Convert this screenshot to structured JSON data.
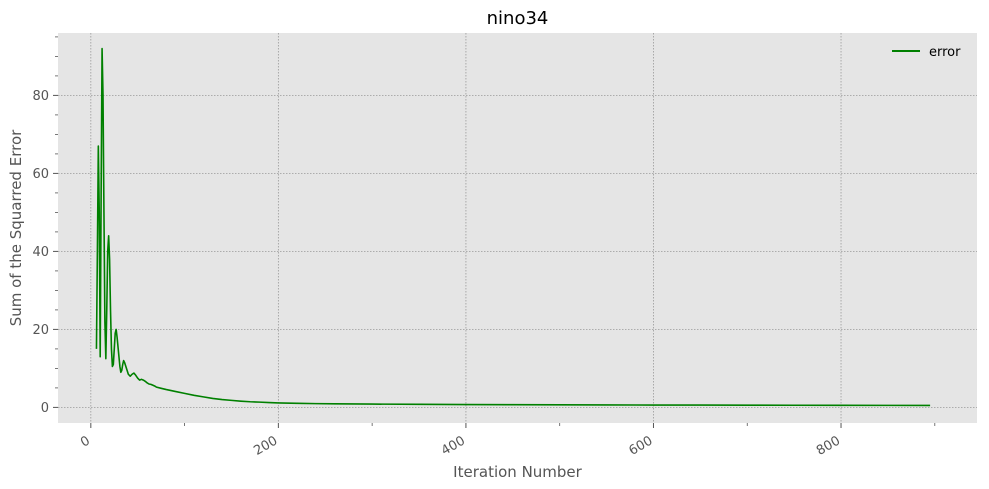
{
  "chart_data": {
    "type": "line",
    "title": "nino34",
    "xlabel": "Iteration Number",
    "ylabel": "Sum of the Squarred Error",
    "xlim": [
      -35,
      945
    ],
    "ylim": [
      -4,
      96
    ],
    "xticks": [
      0,
      200,
      400,
      600,
      800
    ],
    "xtick_labels": [
      "0",
      "200",
      "400",
      "600",
      "800"
    ],
    "yticks": [
      0,
      20,
      40,
      60,
      80
    ],
    "ytick_labels": [
      "0",
      "20",
      "40",
      "60",
      "80"
    ],
    "grid": true,
    "legend_position": "top-right",
    "series": [
      {
        "name": "error",
        "color": "#008000",
        "x": [
          6,
          7,
          8,
          9,
          10,
          11,
          12,
          13,
          14,
          15,
          16,
          17,
          18,
          19,
          20,
          21,
          22,
          23,
          24,
          25,
          26,
          27,
          28,
          30,
          31,
          32,
          33,
          34,
          35,
          36,
          38,
          40,
          42,
          44,
          46,
          48,
          50,
          52,
          54,
          56,
          58,
          60,
          62,
          64,
          66,
          68,
          70,
          75,
          80,
          90,
          100,
          110,
          120,
          130,
          140,
          150,
          160,
          170,
          180,
          190,
          200,
          220,
          240,
          260,
          280,
          300,
          350,
          400,
          450,
          500,
          550,
          600,
          650,
          700,
          750,
          800,
          850,
          895
        ],
        "y": [
          15.0,
          40.0,
          67.0,
          50.0,
          13.0,
          55.0,
          92.0,
          80.0,
          50.0,
          22.0,
          12.5,
          25.0,
          40.0,
          44.0,
          38.0,
          25.0,
          15.0,
          10.5,
          11.0,
          15.0,
          19.0,
          20.0,
          18.0,
          13.0,
          10.5,
          9.0,
          9.5,
          11.0,
          12.0,
          11.5,
          10.0,
          8.5,
          8.0,
          8.5,
          8.8,
          8.2,
          7.5,
          7.0,
          7.2,
          7.0,
          6.7,
          6.3,
          6.0,
          5.9,
          5.7,
          5.5,
          5.2,
          4.9,
          4.6,
          4.1,
          3.6,
          3.1,
          2.7,
          2.3,
          2.0,
          1.8,
          1.6,
          1.45,
          1.35,
          1.25,
          1.15,
          1.05,
          0.97,
          0.92,
          0.88,
          0.85,
          0.78,
          0.73,
          0.69,
          0.66,
          0.63,
          0.61,
          0.59,
          0.57,
          0.55,
          0.53,
          0.52,
          0.5
        ]
      }
    ]
  }
}
